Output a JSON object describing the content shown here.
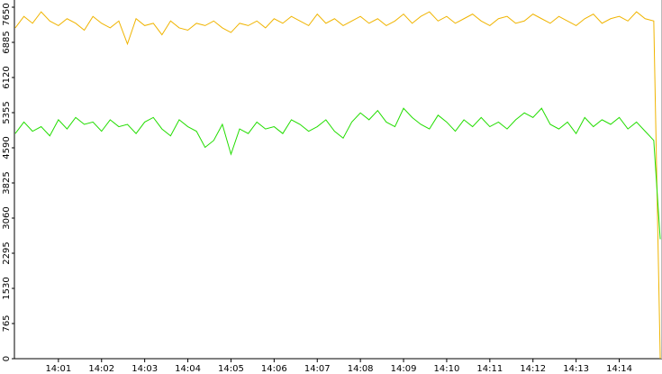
{
  "chart_data": {
    "type": "line",
    "x": [
      0,
      0.2,
      0.4,
      0.6,
      0.8,
      1,
      1.2,
      1.4,
      1.6,
      1.8,
      2,
      2.2,
      2.4,
      2.6,
      2.8,
      3,
      3.2,
      3.4,
      3.6,
      3.8,
      4,
      4.2,
      4.4,
      4.6,
      4.8,
      5,
      5.2,
      5.4,
      5.6,
      5.8,
      6,
      6.2,
      6.4,
      6.6,
      6.8,
      7,
      7.2,
      7.4,
      7.6,
      7.8,
      8,
      8.2,
      8.4,
      8.6,
      8.8,
      9,
      9.2,
      9.4,
      9.6,
      9.8,
      10,
      10.2,
      10.4,
      10.6,
      10.8,
      11,
      11.2,
      11.4,
      11.6,
      11.8,
      12,
      12.2,
      12.4,
      12.6,
      12.8,
      13,
      13.2,
      13.4,
      13.6,
      13.8,
      14,
      14.2,
      14.4,
      14.6,
      14.8,
      14.95
    ],
    "series": [
      {
        "color": "#f0b400",
        "values": [
          7200,
          7450,
          7300,
          7550,
          7350,
          7250,
          7400,
          7300,
          7150,
          7450,
          7300,
          7200,
          7350,
          6850,
          7400,
          7250,
          7300,
          7050,
          7350,
          7200,
          7150,
          7300,
          7250,
          7350,
          7200,
          7100,
          7300,
          7250,
          7350,
          7200,
          7400,
          7300,
          7450,
          7350,
          7250,
          7500,
          7300,
          7400,
          7250,
          7350,
          7450,
          7300,
          7400,
          7250,
          7350,
          7500,
          7300,
          7450,
          7550,
          7350,
          7450,
          7300,
          7400,
          7500,
          7350,
          7250,
          7400,
          7450,
          7300,
          7350,
          7500,
          7400,
          7300,
          7450,
          7350,
          7250,
          7400,
          7500,
          7300,
          7400,
          7450,
          7350,
          7550,
          7400,
          7350,
          0
        ]
      },
      {
        "color": "#22dd00",
        "values": [
          4900,
          5150,
          4950,
          5050,
          4850,
          5200,
          5000,
          5250,
          5100,
          5150,
          4950,
          5200,
          5050,
          5100,
          4900,
          5150,
          5250,
          5000,
          4850,
          5200,
          5050,
          4950,
          4600,
          4750,
          5100,
          4450,
          5000,
          4900,
          5150,
          5000,
          5050,
          4900,
          5200,
          5100,
          4950,
          5050,
          5200,
          4950,
          4800,
          5150,
          5350,
          5200,
          5400,
          5150,
          5050,
          5450,
          5250,
          5100,
          5000,
          5300,
          5150,
          4950,
          5200,
          5050,
          5250,
          5050,
          5150,
          5000,
          5200,
          5350,
          5250,
          5450,
          5100,
          5000,
          5150,
          4900,
          5250,
          5050,
          5200,
          5100,
          5250,
          5000,
          5150,
          4950,
          4750,
          2600
        ]
      }
    ],
    "xlim": [
      -0.02,
      14.97
    ],
    "xticks": [
      {
        "value": 1,
        "label": "14:01"
      },
      {
        "value": 2,
        "label": "14:02"
      },
      {
        "value": 3,
        "label": "14:03"
      },
      {
        "value": 4,
        "label": "14:04"
      },
      {
        "value": 5,
        "label": "14:05"
      },
      {
        "value": 6,
        "label": "14:06"
      },
      {
        "value": 7,
        "label": "14:07"
      },
      {
        "value": 8,
        "label": "14:08"
      },
      {
        "value": 9,
        "label": "14:09"
      },
      {
        "value": 10,
        "label": "14:10"
      },
      {
        "value": 11,
        "label": "14:11"
      },
      {
        "value": 12,
        "label": "14:12"
      },
      {
        "value": 13,
        "label": "14:13"
      },
      {
        "value": 14,
        "label": "14:14"
      }
    ],
    "ylim": [
      0,
      7650
    ],
    "yticks": [
      0,
      765,
      1530,
      2295,
      3060,
      3825,
      4590,
      5355,
      6120,
      6885,
      7650
    ]
  }
}
